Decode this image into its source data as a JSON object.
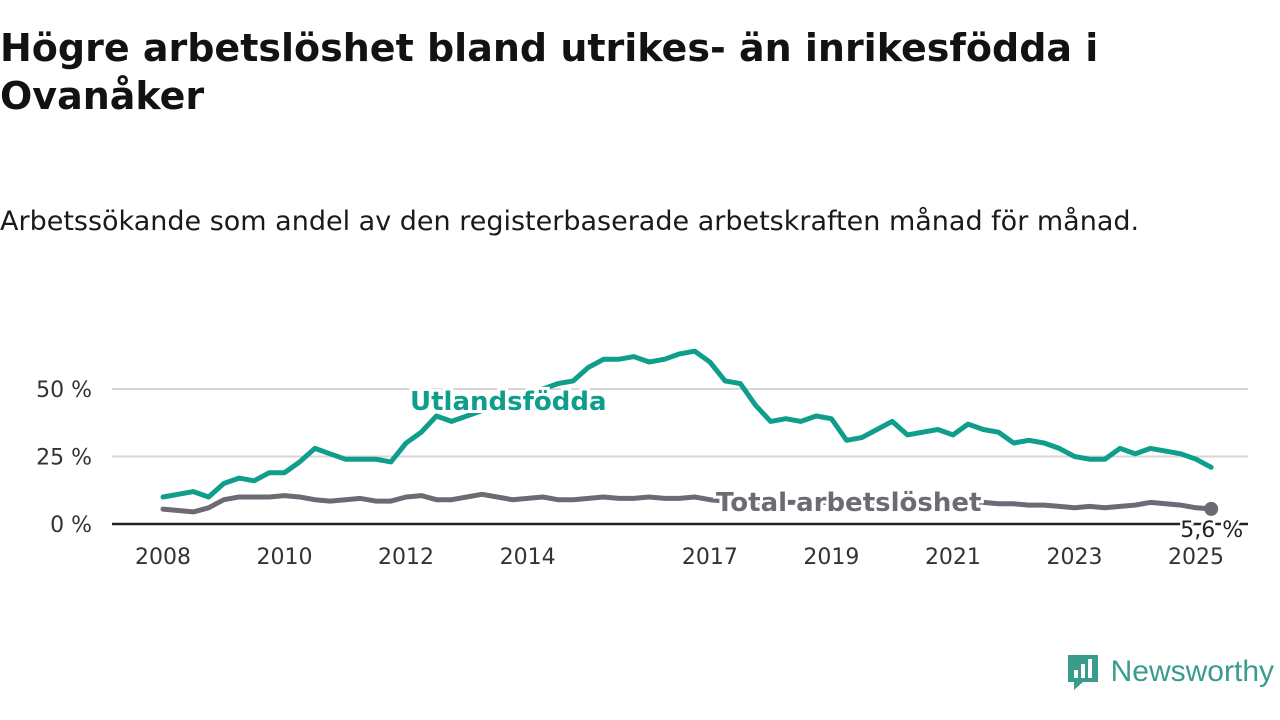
{
  "title": "Högre arbetslöshet bland utrikes- än inrikesfödda i Ovanåker",
  "subtitle": "Arbetssökande som andel av den registerbaserade arbetskraften månad för månad.",
  "brand": {
    "name": "Newsworthy",
    "color": "#3a9c8a"
  },
  "chart_data": {
    "type": "line",
    "title": "Högre arbetslöshet bland utrikes- än inrikesfödda i Ovanåker",
    "subtitle": "Arbetssökande som andel av den registerbaserade arbetskraften månad för månad.",
    "xlabel": "",
    "ylabel": "",
    "xlim": [
      2008,
      2025.25
    ],
    "ylim": [
      0,
      65
    ],
    "yticks": [
      0,
      25,
      50
    ],
    "ytick_labels": [
      "0 %",
      "25 %",
      "50 %"
    ],
    "xticks": [
      2008,
      2010,
      2012,
      2014,
      2017,
      2019,
      2021,
      2023,
      2025
    ],
    "xtick_labels": [
      "2008",
      "2010",
      "2012",
      "2014",
      "2017",
      "2019",
      "2021",
      "2023",
      "2025"
    ],
    "grid": true,
    "series": [
      {
        "name": "Utlandsfödda",
        "color": "#0f9e8c",
        "x": [
          2008.0,
          2008.25,
          2008.5,
          2008.75,
          2009.0,
          2009.25,
          2009.5,
          2009.75,
          2010.0,
          2010.25,
          2010.5,
          2010.75,
          2011.0,
          2011.25,
          2011.5,
          2011.75,
          2012.0,
          2012.25,
          2012.5,
          2012.75,
          2013.0,
          2013.25,
          2013.5,
          2013.75,
          2014.0,
          2014.25,
          2014.5,
          2014.75,
          2015.0,
          2015.25,
          2015.5,
          2015.75,
          2016.0,
          2016.25,
          2016.5,
          2016.75,
          2017.0,
          2017.25,
          2017.5,
          2017.75,
          2018.0,
          2018.25,
          2018.5,
          2018.75,
          2019.0,
          2019.25,
          2019.5,
          2019.75,
          2020.0,
          2020.25,
          2020.5,
          2020.75,
          2021.0,
          2021.25,
          2021.5,
          2021.75,
          2022.0,
          2022.25,
          2022.5,
          2022.75,
          2023.0,
          2023.25,
          2023.5,
          2023.75,
          2024.0,
          2024.25,
          2024.5,
          2024.75,
          2025.0,
          2025.25
        ],
        "y": [
          10,
          11,
          12,
          10,
          15,
          17,
          16,
          19,
          19,
          23,
          28,
          26,
          24,
          24,
          24,
          23,
          30,
          34,
          40,
          38,
          40,
          42,
          44,
          46,
          48,
          50,
          52,
          53,
          58,
          61,
          61,
          62,
          60,
          61,
          63,
          64,
          60,
          53,
          52,
          44,
          38,
          39,
          38,
          40,
          39,
          31,
          32,
          35,
          38,
          33,
          34,
          35,
          33,
          37,
          35,
          34,
          30,
          31,
          30,
          28,
          25,
          24,
          24,
          28,
          26,
          28,
          27,
          26,
          24,
          21
        ]
      },
      {
        "name": "Total arbetslöshet",
        "color": "#6e6a74",
        "x": [
          2008.0,
          2008.25,
          2008.5,
          2008.75,
          2009.0,
          2009.25,
          2009.5,
          2009.75,
          2010.0,
          2010.25,
          2010.5,
          2010.75,
          2011.0,
          2011.25,
          2011.5,
          2011.75,
          2012.0,
          2012.25,
          2012.5,
          2012.75,
          2013.0,
          2013.25,
          2013.5,
          2013.75,
          2014.0,
          2014.25,
          2014.5,
          2014.75,
          2015.0,
          2015.25,
          2015.5,
          2015.75,
          2016.0,
          2016.25,
          2016.5,
          2016.75,
          2017.0,
          2017.25,
          2017.5,
          2017.75,
          2018.0,
          2018.25,
          2018.5,
          2018.75,
          2019.0,
          2019.25,
          2019.5,
          2019.75,
          2020.0,
          2020.25,
          2020.5,
          2020.75,
          2021.0,
          2021.25,
          2021.5,
          2021.75,
          2022.0,
          2022.25,
          2022.5,
          2022.75,
          2023.0,
          2023.25,
          2023.5,
          2023.75,
          2024.0,
          2024.25,
          2024.5,
          2024.75,
          2025.0,
          2025.25
        ],
        "y": [
          5.5,
          5,
          4.5,
          6,
          9,
          10,
          10,
          10,
          10.5,
          10,
          9,
          8.5,
          9,
          9.5,
          8.5,
          8.5,
          10,
          10.5,
          9,
          9,
          10,
          11,
          10,
          9,
          9.5,
          10,
          9,
          9,
          9.5,
          10,
          9.5,
          9.5,
          10,
          9.5,
          9.5,
          10,
          9,
          8.5,
          8.5,
          8,
          8,
          8,
          8,
          8,
          8,
          8,
          8,
          8,
          8,
          8,
          8,
          8,
          8,
          8,
          8,
          7.5,
          7.5,
          7,
          7,
          6.5,
          6,
          6.5,
          6,
          6.5,
          7,
          8,
          7.5,
          7,
          6,
          5.6
        ]
      }
    ],
    "annotations": [
      {
        "text": "Utlandsfödda",
        "series": 0
      },
      {
        "text": "Total arbetslöshet",
        "series": 1
      },
      {
        "text": "5,6 %",
        "series": 1,
        "point": "last"
      }
    ]
  }
}
